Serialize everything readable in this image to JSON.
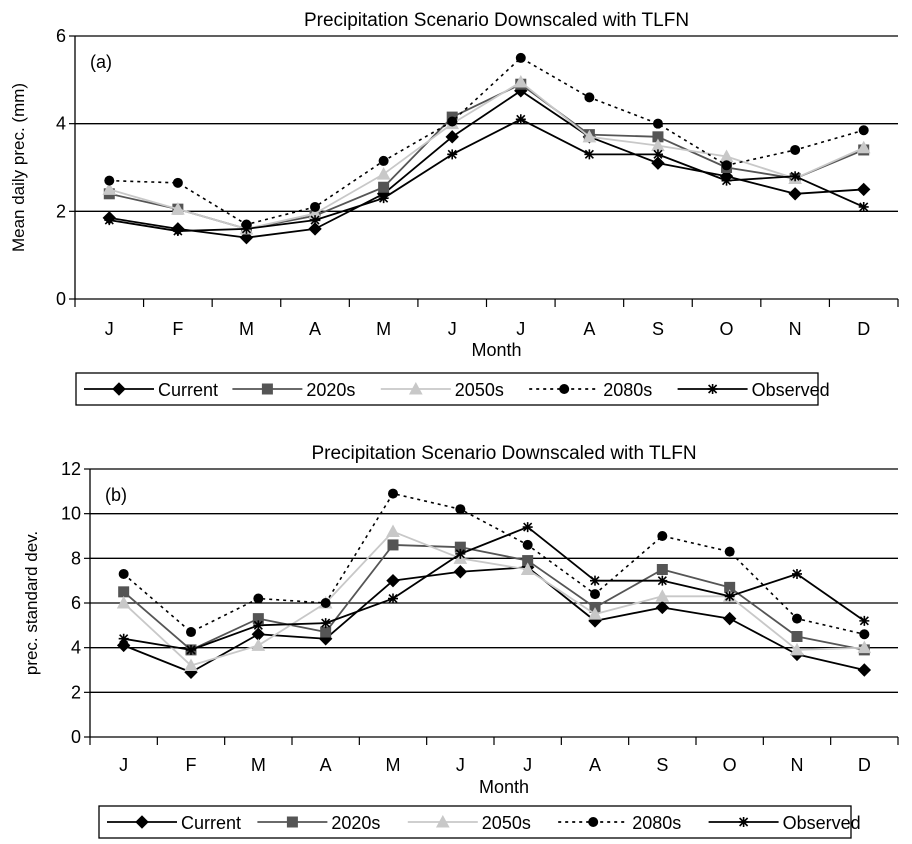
{
  "chart_data": [
    {
      "type": "line",
      "panel_label": "(a)",
      "title": "Precipitation Scenario Downscaled with TLFN",
      "xlabel": "Month",
      "ylabel": "Mean daily prec. (mm)",
      "categories": [
        "J",
        "F",
        "M",
        "A",
        "M",
        "J",
        "J",
        "A",
        "S",
        "O",
        "N",
        "D"
      ],
      "ylim": [
        0,
        6
      ],
      "yticks": [
        "0",
        "2",
        "4",
        "6"
      ],
      "grid": "horizontal",
      "legend_position": "bottom",
      "series": [
        {
          "name": "Current",
          "color": "#000000",
          "dash": "solid",
          "marker": "diamond",
          "values": [
            1.85,
            1.6,
            1.4,
            1.6,
            2.4,
            3.7,
            4.75,
            3.7,
            3.1,
            2.8,
            2.4,
            2.5
          ]
        },
        {
          "name": "2020s",
          "color": "#555555",
          "dash": "solid",
          "marker": "square",
          "values": [
            2.4,
            2.05,
            1.6,
            1.9,
            2.55,
            4.15,
            4.9,
            3.75,
            3.7,
            3.0,
            2.75,
            3.4
          ]
        },
        {
          "name": "2050s",
          "color": "#c8c8c8",
          "dash": "solid",
          "marker": "triangle",
          "values": [
            2.5,
            2.05,
            1.6,
            1.95,
            2.85,
            4.0,
            4.95,
            3.7,
            3.5,
            3.25,
            2.75,
            3.45
          ]
        },
        {
          "name": "2080s",
          "color": "#000000",
          "dash": "dotted",
          "marker": "circle",
          "values": [
            2.7,
            2.65,
            1.7,
            2.1,
            3.15,
            4.05,
            5.5,
            4.6,
            4.0,
            3.05,
            3.4,
            3.85
          ]
        },
        {
          "name": "Observed",
          "color": "#000000",
          "dash": "solid",
          "marker": "star",
          "values": [
            1.8,
            1.55,
            1.6,
            1.8,
            2.3,
            3.3,
            4.1,
            3.3,
            3.3,
            2.7,
            2.8,
            2.1
          ]
        }
      ]
    },
    {
      "type": "line",
      "panel_label": "(b)",
      "title": "Precipitation Scenario Downscaled with TLFN",
      "xlabel": "Month",
      "ylabel": "prec. standard dev.",
      "categories": [
        "J",
        "F",
        "M",
        "A",
        "M",
        "J",
        "J",
        "A",
        "S",
        "O",
        "N",
        "D"
      ],
      "ylim": [
        0,
        12
      ],
      "yticks": [
        "0",
        "2",
        "4",
        "6",
        "8",
        "10",
        "12"
      ],
      "grid": "horizontal",
      "legend_position": "bottom",
      "series": [
        {
          "name": "Current",
          "color": "#000000",
          "dash": "solid",
          "marker": "diamond",
          "values": [
            4.1,
            2.9,
            4.6,
            4.4,
            7.0,
            7.4,
            7.6,
            5.2,
            5.8,
            5.3,
            3.7,
            3.0
          ]
        },
        {
          "name": "2020s",
          "color": "#555555",
          "dash": "solid",
          "marker": "square",
          "values": [
            6.5,
            3.9,
            5.3,
            4.7,
            8.6,
            8.5,
            7.9,
            5.8,
            7.5,
            6.7,
            4.5,
            3.9
          ]
        },
        {
          "name": "2050s",
          "color": "#c8c8c8",
          "dash": "solid",
          "marker": "triangle",
          "values": [
            6.0,
            3.2,
            4.1,
            6.0,
            9.2,
            8.0,
            7.5,
            5.5,
            6.3,
            6.3,
            3.9,
            4.0
          ]
        },
        {
          "name": "2080s",
          "color": "#000000",
          "dash": "dotted",
          "marker": "circle",
          "values": [
            7.3,
            4.7,
            6.2,
            6.0,
            10.9,
            10.2,
            8.6,
            6.4,
            9.0,
            8.3,
            5.3,
            4.6
          ]
        },
        {
          "name": "Observed",
          "color": "#000000",
          "dash": "solid",
          "marker": "star",
          "values": [
            4.4,
            3.9,
            5.0,
            5.1,
            6.2,
            8.2,
            9.4,
            7.0,
            7.0,
            6.3,
            7.3,
            5.2
          ]
        }
      ]
    }
  ]
}
